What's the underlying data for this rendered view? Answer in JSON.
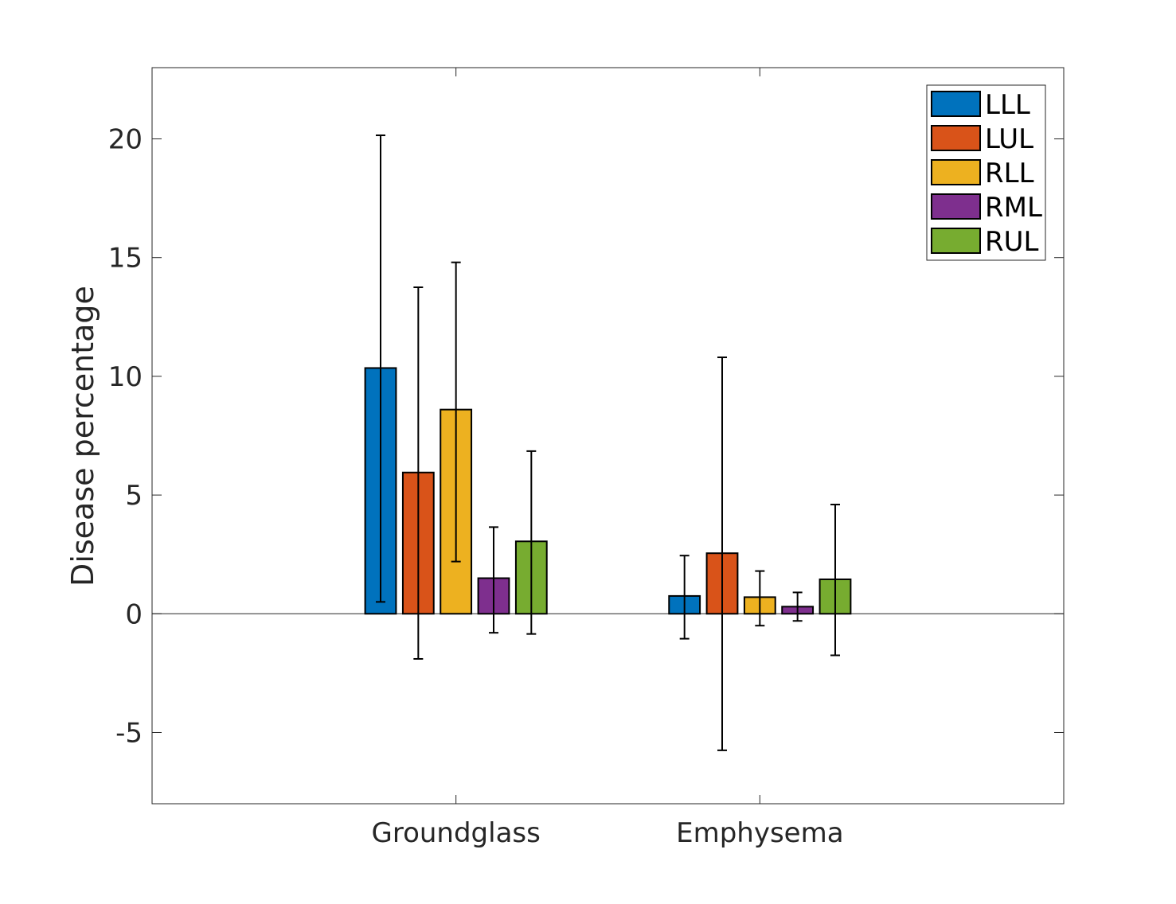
{
  "chart_data": {
    "type": "bar",
    "title": "",
    "xlabel": "",
    "ylabel": "Disease percentage",
    "categories": [
      "Groundglass",
      "Emphysema"
    ],
    "ylim": [
      -8,
      23
    ],
    "yticks": [
      -5,
      0,
      5,
      10,
      15,
      20
    ],
    "ytick_labels": [
      "-5",
      "0",
      "5",
      "10",
      "15",
      "20"
    ],
    "grid": false,
    "legend_position": "top-right",
    "series": [
      {
        "name": "LLL",
        "color": "#0072BD",
        "values": [
          10.35,
          0.75
        ],
        "err_low": [
          0.5,
          -1.05
        ],
        "err_high": [
          20.15,
          2.45
        ]
      },
      {
        "name": "LUL",
        "color": "#D95319",
        "values": [
          5.95,
          2.55
        ],
        "err_low": [
          -1.9,
          -5.75
        ],
        "err_high": [
          13.75,
          10.8
        ]
      },
      {
        "name": "RLL",
        "color": "#EDB120",
        "values": [
          8.6,
          0.7
        ],
        "err_low": [
          2.2,
          -0.5
        ],
        "err_high": [
          14.8,
          1.8
        ]
      },
      {
        "name": "RML",
        "color": "#7E2F8E",
        "values": [
          1.5,
          0.3
        ],
        "err_low": [
          -0.8,
          -0.3
        ],
        "err_high": [
          3.65,
          0.9
        ]
      },
      {
        "name": "RUL",
        "color": "#77AC30",
        "values": [
          3.05,
          1.45
        ],
        "err_low": [
          -0.85,
          -1.75
        ],
        "err_high": [
          6.85,
          4.6
        ]
      }
    ]
  }
}
